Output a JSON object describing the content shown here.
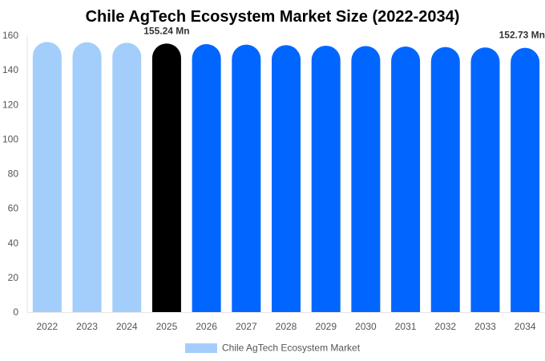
{
  "chart_data": {
    "type": "bar",
    "title": "Chile AgTech Ecosystem Market Size (2022-2034)",
    "categories": [
      "2022",
      "2023",
      "2024",
      "2025",
      "2026",
      "2027",
      "2028",
      "2029",
      "2030",
      "2031",
      "2032",
      "2033",
      "2034"
    ],
    "series": [
      {
        "name": "Chile AgTech Ecosystem Market",
        "values": [
          156.2,
          156.0,
          155.7,
          155.24,
          154.9,
          154.6,
          154.3,
          154.0,
          153.8,
          153.5,
          153.2,
          153.0,
          152.73
        ]
      }
    ],
    "ylim": [
      0,
      160
    ],
    "yticks": [
      0,
      20,
      40,
      60,
      80,
      100,
      120,
      140,
      160
    ],
    "data_labels": [
      {
        "index": 3,
        "text": "155.24 Mn"
      },
      {
        "index": 12,
        "text": "152.73 Mn"
      }
    ],
    "colors": {
      "historical": "#a3cefc",
      "base_year": "#000000",
      "forecast": "#0066ff",
      "legend_swatch": "#a3cefc"
    },
    "base_year_index": 3,
    "legend_placement": "bottom-center",
    "grid": false
  }
}
